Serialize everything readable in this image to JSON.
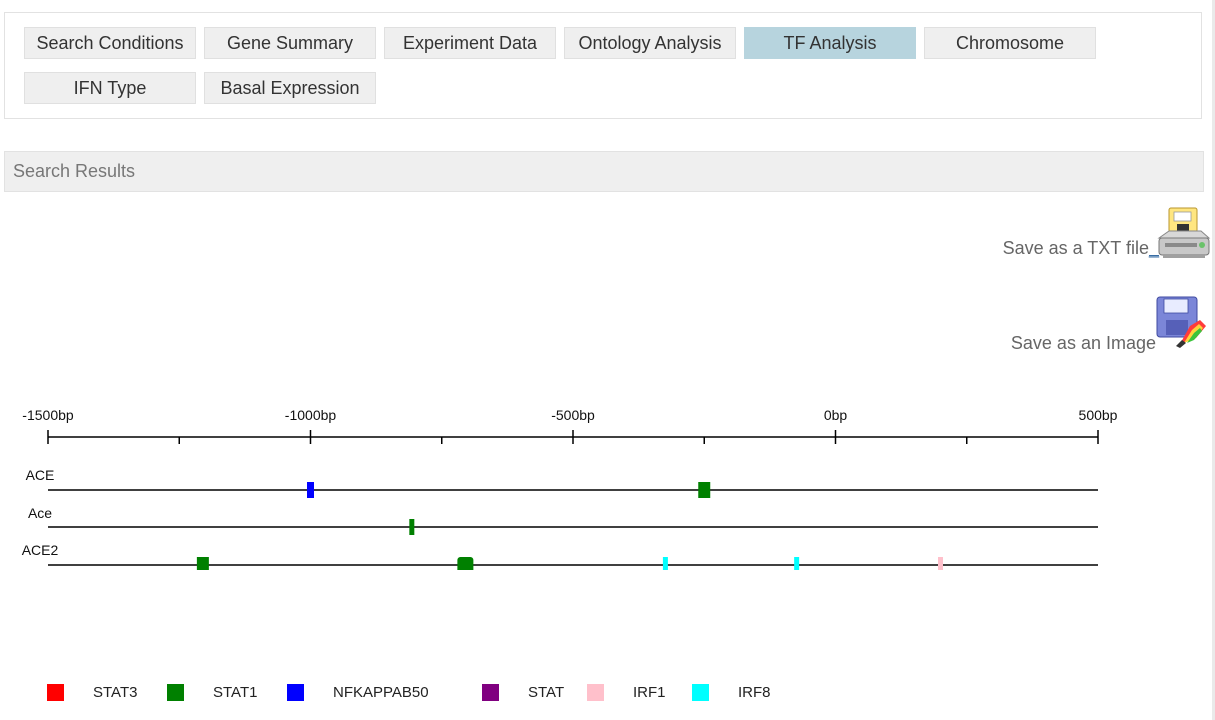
{
  "tabs": [
    {
      "label": "Search Conditions",
      "active": false
    },
    {
      "label": "Gene Summary",
      "active": false
    },
    {
      "label": "Experiment Data",
      "active": false
    },
    {
      "label": "Ontology Analysis",
      "active": false
    },
    {
      "label": "TF Analysis",
      "active": true
    },
    {
      "label": "Chromosome",
      "active": false
    },
    {
      "label": "IFN Type",
      "active": false
    },
    {
      "label": "Basal Expression",
      "active": false
    }
  ],
  "results_bar": {
    "title": "Search Results"
  },
  "save": {
    "txt_label": "Save as a TXT file",
    "txt_link": "_",
    "txt_icon": "printer-floppy-icon",
    "image_label": "Save as an Image",
    "image_icon": "floppy-paint-icon"
  },
  "colors": {
    "STAT3": "#ff0000",
    "STAT1": "#008000",
    "NFKAPPAB50": "#0000ff",
    "STAT": "#800080",
    "IRF1": "#ffc0cb",
    "IRF8": "#00ffff",
    "active_tab": "#b7d4de"
  },
  "chart_data": {
    "type": "track",
    "x_domain": [
      -1500,
      500
    ],
    "major_ticks": [
      {
        "value": -1500,
        "label": "-1500bp"
      },
      {
        "value": -1000,
        "label": "-1000bp"
      },
      {
        "value": -500,
        "label": "-500bp"
      },
      {
        "value": 0,
        "label": "0bp"
      },
      {
        "value": 500,
        "label": "500bp"
      }
    ],
    "minor_ticks": [
      -1250,
      -750,
      -250,
      250
    ],
    "genes": [
      {
        "name": "ACE",
        "sites": [
          {
            "tf": "NFKAPPAB50",
            "pos": -1000,
            "width": 12
          },
          {
            "tf": "STAT1",
            "pos": -250,
            "width": 22
          }
        ]
      },
      {
        "name": "Ace",
        "sites": [
          {
            "tf": "STAT1",
            "pos": -807,
            "width": 10
          }
        ]
      },
      {
        "name": "ACE2",
        "sites": [
          {
            "tf": "STAT1",
            "pos": -1205,
            "width": 22
          },
          {
            "tf": "STAT1",
            "pos": -705,
            "width": 30
          },
          {
            "tf": "IRF8",
            "pos": -324,
            "width": 10
          },
          {
            "tf": "IRF8",
            "pos": -74,
            "width": 10
          },
          {
            "tf": "IRF1",
            "pos": 200,
            "width": 10
          }
        ]
      }
    ],
    "legend": [
      "STAT3",
      "STAT1",
      "NFKAPPAB50",
      "STAT",
      "IRF1",
      "IRF8"
    ]
  }
}
